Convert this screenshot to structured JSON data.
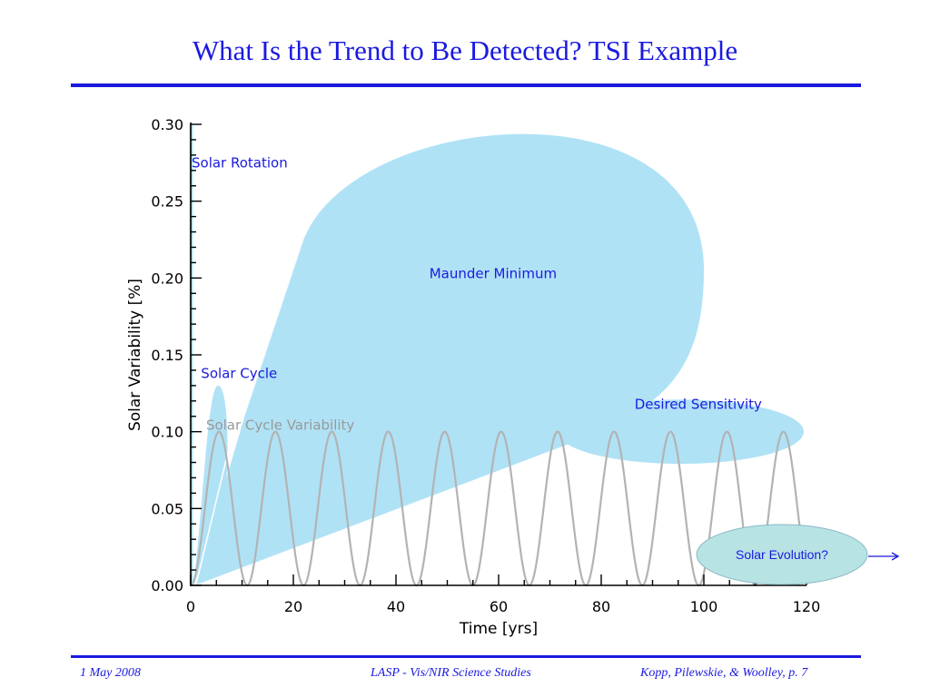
{
  "slide": {
    "title": "What Is the Trend to Be Detected? TSI Example",
    "footer_left": "1 May 2008",
    "footer_center": "LASP - Vis/NIR Science Studies",
    "footer_right": "Kopp, Pilewskie, & Woolley, p. 7"
  },
  "chart_data": {
    "type": "line",
    "title": "",
    "xlabel": "Time [yrs]",
    "ylabel": "Solar Variability [%]",
    "xlim": [
      0,
      120
    ],
    "ylim": [
      0,
      0.3
    ],
    "x_ticks": [
      "0",
      "20",
      "40",
      "60",
      "80",
      "100",
      "120"
    ],
    "y_ticks": [
      "0.00",
      "0.05",
      "0.10",
      "0.15",
      "0.20",
      "0.25",
      "0.30"
    ],
    "grid": false,
    "series": [
      {
        "name": "Solar Cycle Variability",
        "function": "0.05*(1-cos(2*pi*x/11))",
        "period_yrs": 11,
        "amplitude_pct": 0.1,
        "color": "#b3b3b3"
      }
    ],
    "annotations": [
      {
        "label": "Solar Rotation",
        "color": "#1a1adf",
        "fill": "#b0e2f6"
      },
      {
        "label": "Solar Cycle",
        "color": "#1a1adf",
        "fill": "#b0e2f6"
      },
      {
        "label": "Solar Cycle Variability",
        "color": "#999999"
      },
      {
        "label": "Maunder Minimum",
        "color": "#1a1adf",
        "fill": "#b0e2f6"
      },
      {
        "label": "Desired Sensitivity",
        "color": "#1a1adf",
        "fill": "#b0e2f6"
      },
      {
        "label": "Solar Evolution?",
        "color": "#1a1adf",
        "fill": "#b7e3e3"
      }
    ],
    "colors": {
      "axis": "#000000",
      "accent": "#1a1adf",
      "bubble": "#b0e2f6",
      "curve": "#b3b3b3",
      "evolution": "#b7e3e3"
    }
  }
}
